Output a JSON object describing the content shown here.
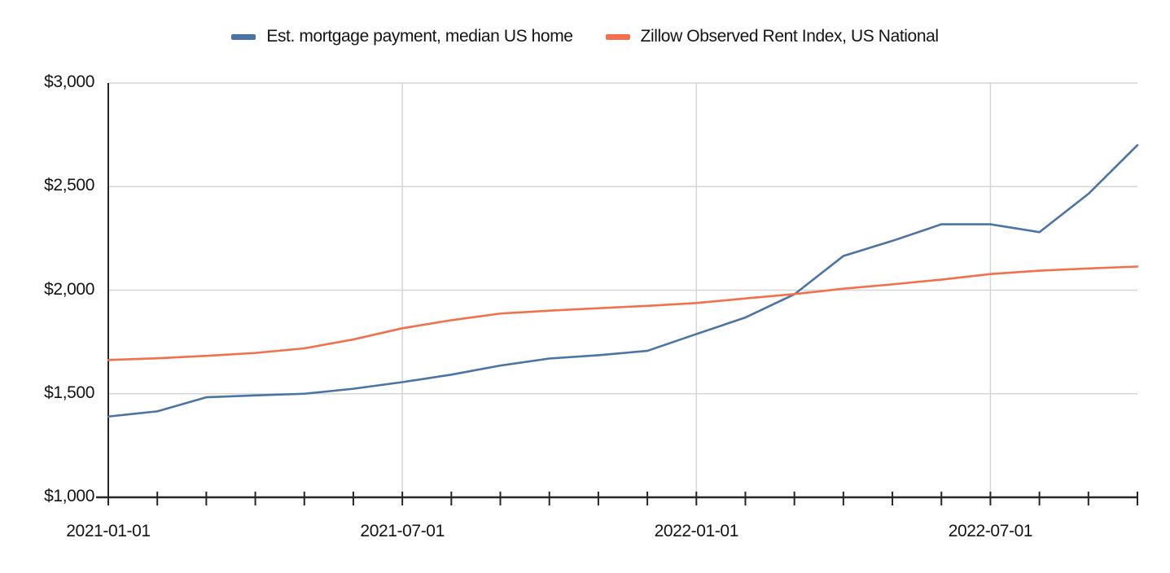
{
  "page": {
    "background": "#ffffff"
  },
  "legend": {
    "items": [
      {
        "label": "Est. mortgage payment, median US home",
        "color": "#4a74a5"
      },
      {
        "label": "Zillow Observed Rent Index, US National",
        "color": "#f4704c"
      }
    ]
  },
  "chart_data": {
    "type": "line",
    "x": [
      "2021-01-01",
      "2021-02-01",
      "2021-03-01",
      "2021-04-01",
      "2021-05-01",
      "2021-06-01",
      "2021-07-01",
      "2021-08-01",
      "2021-09-01",
      "2021-10-01",
      "2021-11-01",
      "2021-12-01",
      "2022-01-01",
      "2022-02-01",
      "2022-03-01",
      "2022-04-01",
      "2022-05-01",
      "2022-06-01",
      "2022-07-01",
      "2022-08-01",
      "2022-09-01",
      "2022-10-01"
    ],
    "series": [
      {
        "name": "Est. mortgage payment, median US home",
        "color": "#4a74a5",
        "values": [
          1390,
          1415,
          1483,
          1492,
          1500,
          1524,
          1556,
          1592,
          1636,
          1670,
          1686,
          1707,
          1788,
          1868,
          1980,
          2165,
          2238,
          2318,
          2318,
          2280,
          2465,
          2700
        ]
      },
      {
        "name": "Zillow Observed Rent Index, US National",
        "color": "#f4704c",
        "values": [
          1663,
          1671,
          1683,
          1697,
          1719,
          1762,
          1816,
          1855,
          1887,
          1901,
          1913,
          1924,
          1938,
          1960,
          1981,
          2007,
          2028,
          2051,
          2078,
          2094,
          2105,
          2114
        ]
      }
    ],
    "ylim": [
      1000,
      3000
    ],
    "y_ticks": [
      1000,
      1500,
      2000,
      2500,
      3000
    ],
    "y_tick_labels": [
      "$1,000",
      "$1,500",
      "$2,000",
      "$2,500",
      "$3,000"
    ],
    "x_label_indices": [
      0,
      6,
      12,
      18
    ],
    "x_tick_labels": [
      "2021-01-01",
      "2021-07-01",
      "2022-01-01",
      "2022-07-01"
    ],
    "vertical_gridline_indices": [
      6,
      12,
      18
    ],
    "grid": true,
    "legend_position": "top-center",
    "colors": {
      "grid": "#d6d6d6",
      "axis": "#262626",
      "label": "#141414"
    }
  }
}
